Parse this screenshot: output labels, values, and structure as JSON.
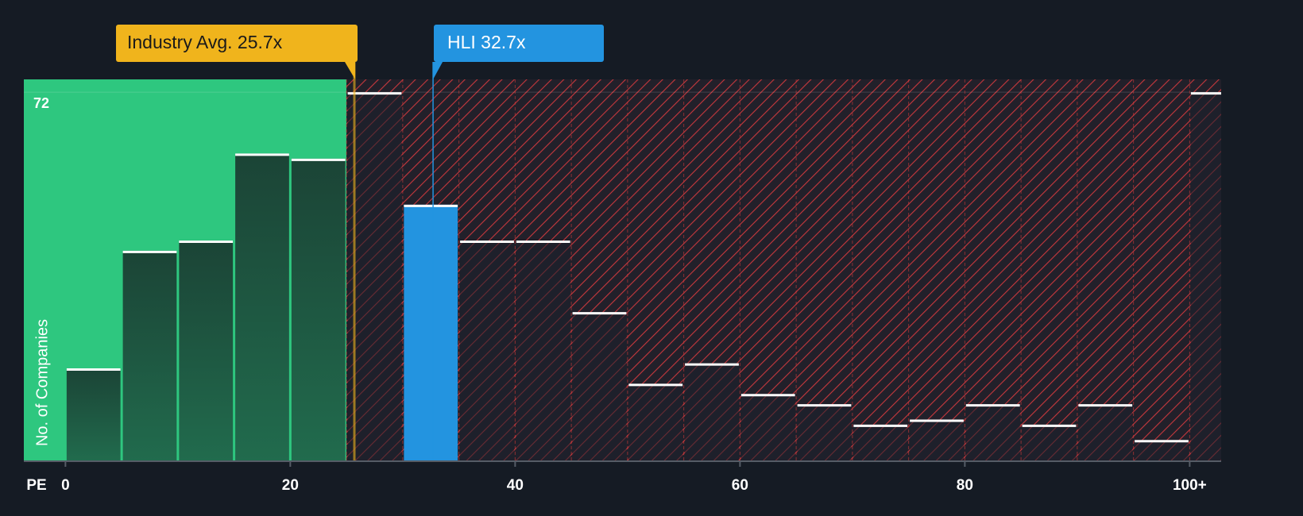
{
  "chart_data": {
    "type": "histogram",
    "x_label": "PE",
    "y_label": "No. of Companies",
    "bins": [
      0,
      5,
      10,
      15,
      20,
      25,
      30,
      35,
      40,
      45,
      50,
      55,
      60,
      65,
      70,
      75,
      80,
      85,
      90,
      95,
      100,
      105
    ],
    "values": [
      18,
      41,
      43,
      60,
      59,
      72,
      50,
      43,
      43,
      29,
      15,
      19,
      13,
      11,
      7,
      8,
      11,
      7,
      11,
      4,
      72
    ],
    "xlim": [
      -3.7,
      102.8
    ],
    "ylim": [
      0,
      74.5
    ],
    "xticks": [
      0,
      20,
      40,
      60,
      80,
      {
        "value": 100,
        "label": "100+"
      }
    ],
    "yticks": [
      72
    ],
    "green_max": 25,
    "colors": {
      "green": "#2ec77f",
      "red": "#d03a3a",
      "highlight": "#2394e0",
      "industry": "#f0b41c"
    },
    "annotations": [
      {
        "text": "Industry Avg. 25.7x",
        "value": 25.7,
        "color": "#f0b41c"
      },
      {
        "text": "HLI 32.7x",
        "value": 32.7,
        "color": "#2394e0"
      }
    ]
  }
}
